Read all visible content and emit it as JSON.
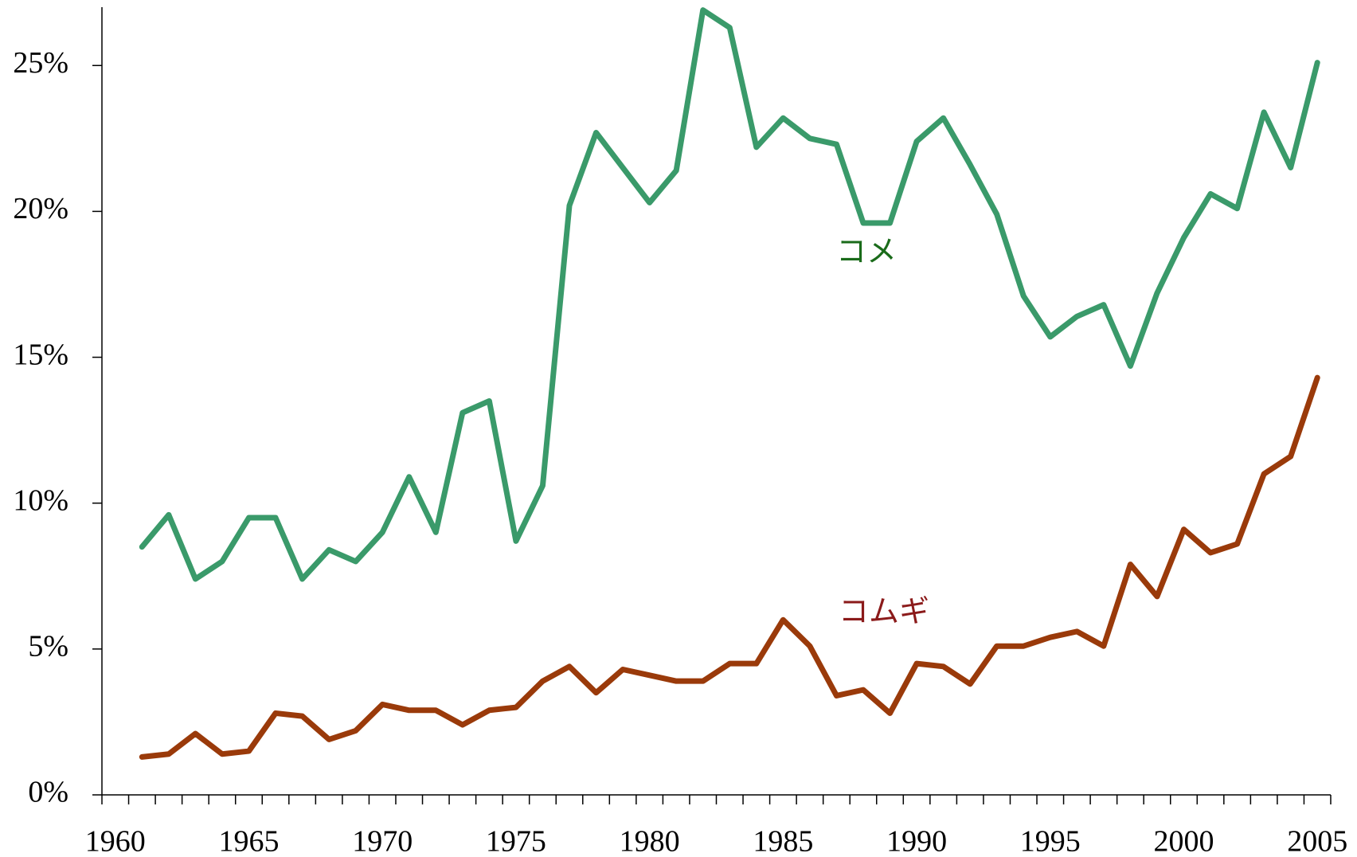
{
  "chart_data": {
    "type": "line",
    "x": [
      1961,
      1962,
      1963,
      1964,
      1965,
      1966,
      1967,
      1968,
      1969,
      1970,
      1971,
      1972,
      1973,
      1974,
      1975,
      1976,
      1977,
      1978,
      1979,
      1980,
      1981,
      1982,
      1983,
      1984,
      1985,
      1986,
      1987,
      1988,
      1989,
      1990,
      1991,
      1992,
      1993,
      1994,
      1995,
      1996,
      1997,
      1998,
      1999,
      2000,
      2001,
      2002,
      2003,
      2004,
      2005
    ],
    "series": [
      {
        "name": "コメ",
        "color": "#3a9a6a",
        "label_color": "#1a6b1a",
        "values": [
          8.5,
          9.6,
          7.4,
          8.0,
          9.5,
          9.5,
          7.4,
          8.4,
          8.0,
          9.0,
          10.9,
          9.0,
          13.1,
          13.5,
          8.7,
          10.6,
          20.2,
          22.7,
          21.5,
          20.3,
          21.4,
          26.9,
          26.3,
          22.2,
          23.2,
          22.5,
          22.3,
          19.6,
          19.6,
          22.4,
          23.2,
          21.6,
          19.9,
          17.1,
          15.7,
          16.4,
          16.8,
          14.7,
          17.2,
          19.1,
          20.6,
          20.1,
          23.4,
          21.5,
          25.1
        ]
      },
      {
        "name": "コムギ",
        "color": "#9a3a0a",
        "label_color": "#8b1a1a",
        "values": [
          1.3,
          1.4,
          2.1,
          1.4,
          1.5,
          2.8,
          2.7,
          1.9,
          2.2,
          3.1,
          2.9,
          2.9,
          2.4,
          2.9,
          3.0,
          3.9,
          4.4,
          3.5,
          4.3,
          4.1,
          3.9,
          3.9,
          4.5,
          4.5,
          6.0,
          5.1,
          3.4,
          3.6,
          2.8,
          4.5,
          4.4,
          3.8,
          5.1,
          5.1,
          5.4,
          5.6,
          5.1,
          7.9,
          6.8,
          9.1,
          8.3,
          8.6,
          11.0,
          11.6,
          14.3
        ]
      }
    ],
    "xlim": [
      1959.5,
      2005.5
    ],
    "xticks": [
      1960,
      1965,
      1970,
      1975,
      1980,
      1985,
      1990,
      1995,
      2000,
      2005
    ],
    "xminorticks": [
      1959.5,
      1960.5,
      1961.5,
      1962.5,
      1963.5,
      1964.5,
      1965.5,
      1966.5,
      1967.5,
      1968.5,
      1969.5,
      1970.5,
      1971.5,
      1972.5,
      1973.5,
      1974.5,
      1975.5,
      1976.5,
      1977.5,
      1978.5,
      1979.5,
      1980.5,
      1981.5,
      1982.5,
      1983.5,
      1984.5,
      1985.5,
      1986.5,
      1987.5,
      1988.5,
      1989.5,
      1990.5,
      1991.5,
      1992.5,
      1993.5,
      1994.5,
      1995.5,
      1996.5,
      1997.5,
      1998.5,
      1999.5,
      2000.5,
      2001.5,
      2002.5,
      2003.5,
      2004.5,
      2005.5
    ],
    "ylim": [
      0,
      27
    ],
    "yticks": [
      {
        "value": 0,
        "label": "0%"
      },
      {
        "value": 5,
        "label": "5%"
      },
      {
        "value": 10,
        "label": "10%"
      },
      {
        "value": 15,
        "label": "15%"
      },
      {
        "value": 20,
        "label": "20%"
      },
      {
        "value": 25,
        "label": "25%"
      }
    ]
  }
}
